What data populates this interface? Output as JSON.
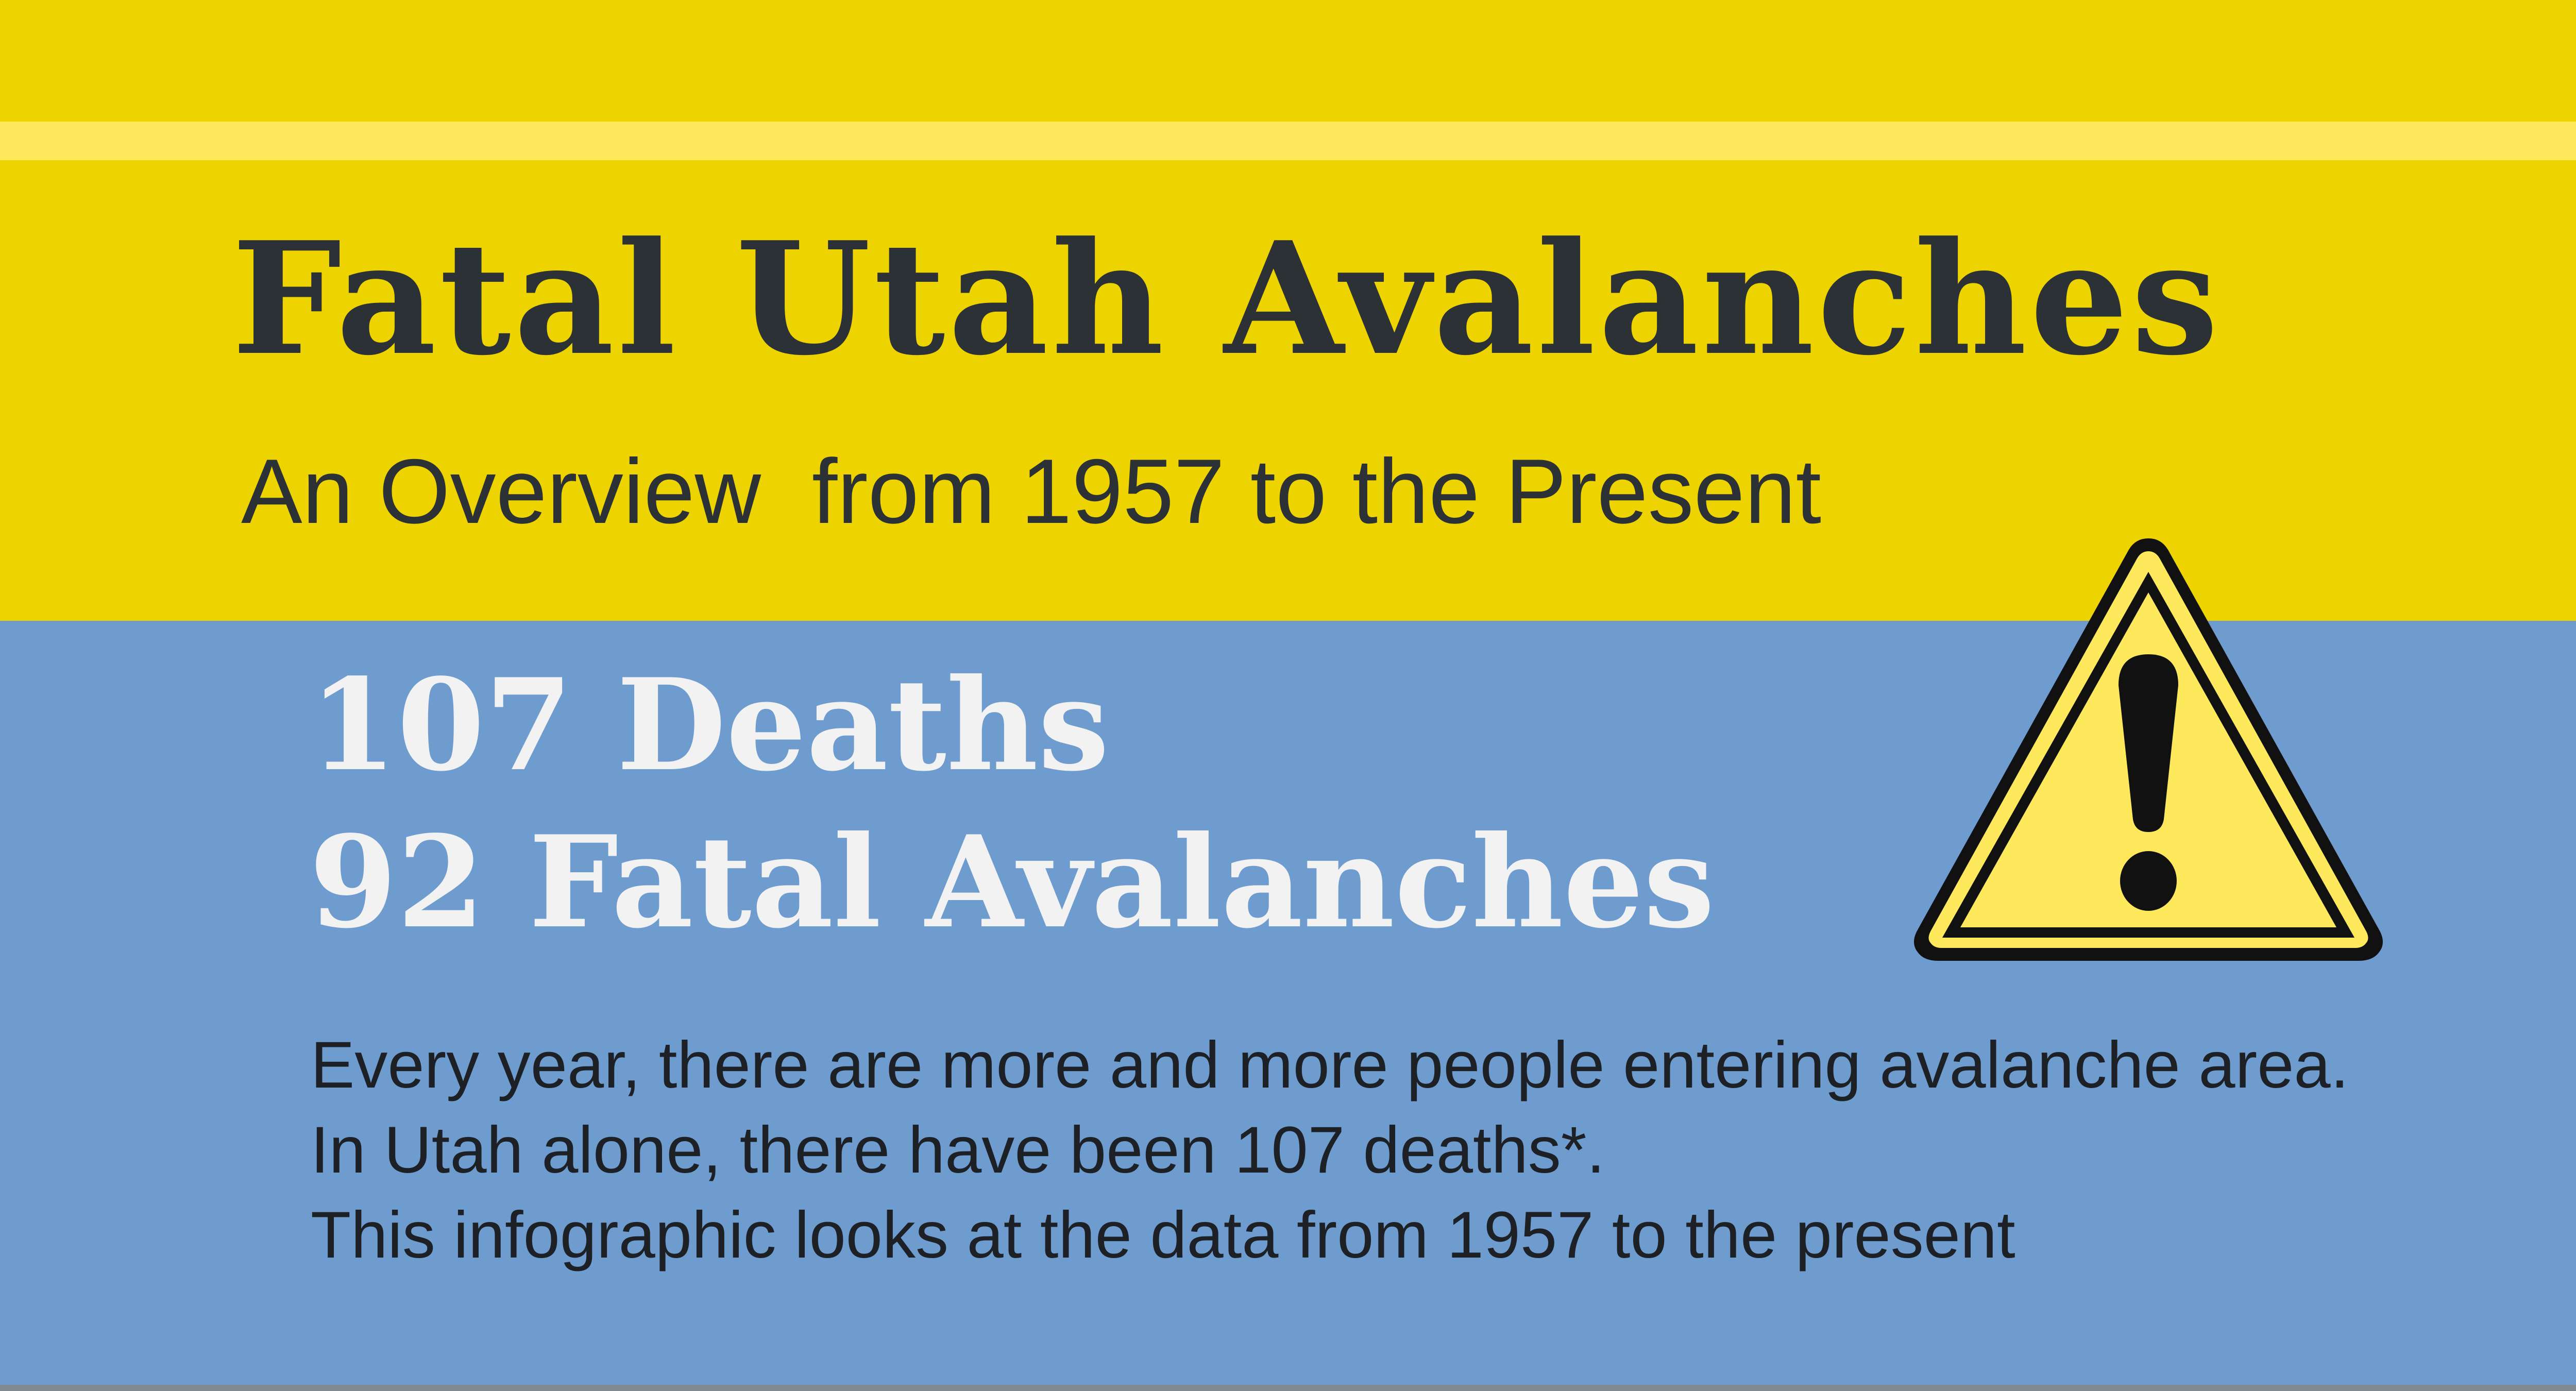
{
  "header": {
    "title": "Fatal Utah Avalanches",
    "subtitle": "An Overview  from 1957 to the Present"
  },
  "stats": {
    "deaths": "107 Deaths",
    "fatal_avalanches": "92 Fatal Avalanches"
  },
  "intro": {
    "lines": [
      "Every year, there are more and more people entering avalanche area.",
      "In Utah alone, there have been 107 deaths*.",
      "This infographic looks at the data from 1957 to the present"
    ]
  },
  "icons": {
    "warning": "warning-triangle-icon"
  },
  "colors": {
    "top_band": "#edd300",
    "accent_stripe": "#fde95b",
    "bottom_band": "#6f9ccf",
    "title_text": "#2c3136",
    "stat_text": "#f2f2f2",
    "warning_fill": "#fde95b"
  }
}
